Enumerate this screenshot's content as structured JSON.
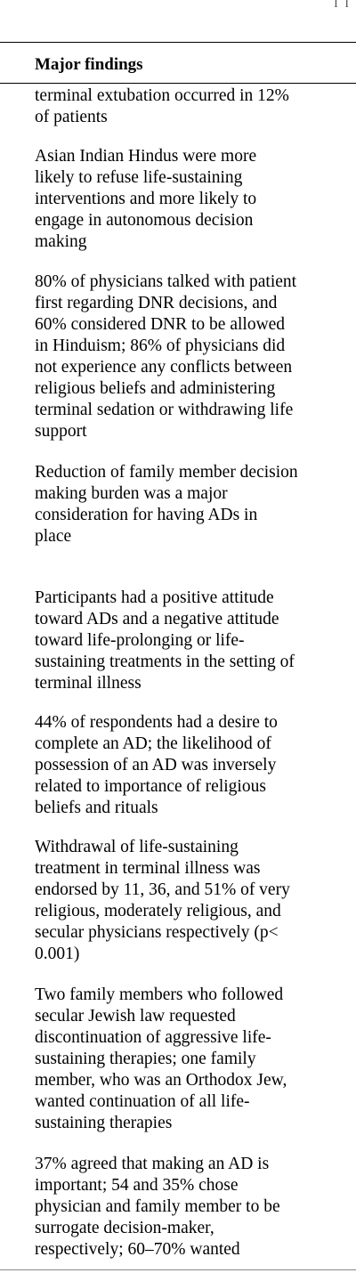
{
  "corner_mark": "I I",
  "table": {
    "column_header": "Major findings",
    "findings": [
      "terminal extubation occurred in 12%\nof patients",
      "Asian Indian Hindus were more\nlikely to refuse life-sustaining\ninterventions and more likely to\nengage in autonomous decision\nmaking",
      "80% of physicians talked with patient\nfirst regarding DNR decisions, and\n60% considered DNR to be allowed\nin Hinduism; 86% of physicians did\nnot experience any conflicts between\nreligious beliefs and administering\nterminal sedation or withdrawing life\nsupport",
      "Reduction of family member decision\nmaking burden was a major\nconsideration for having ADs in\nplace",
      "Participants had a positive attitude\ntoward ADs and a negative attitude\ntoward life-prolonging or life-\nsustaining treatments in the setting of\nterminal illness",
      "44% of respondents had a desire to\ncomplete an AD; the likelihood of\npossession of an AD was inversely\nrelated to importance of religious\nbeliefs and rituals",
      "Withdrawal of life-sustaining\ntreatment in terminal illness was\nendorsed by 11, 36, and 51% of very\nreligious, moderately religious, and\nsecular physicians respectively (p<\n0.001)",
      "Two family members who followed\nsecular Jewish law requested\ndiscontinuation of aggressive life-\nsustaining therapies; one family\nmember, who was an Orthodox Jew,\nwanted continuation of all life-\nsustaining therapies",
      "37% agreed that making an AD is\nimportant; 54 and 35% chose\nphysician and family member to be\nsurrogate decision-maker,\nrespectively; 60–70% wanted"
    ]
  }
}
